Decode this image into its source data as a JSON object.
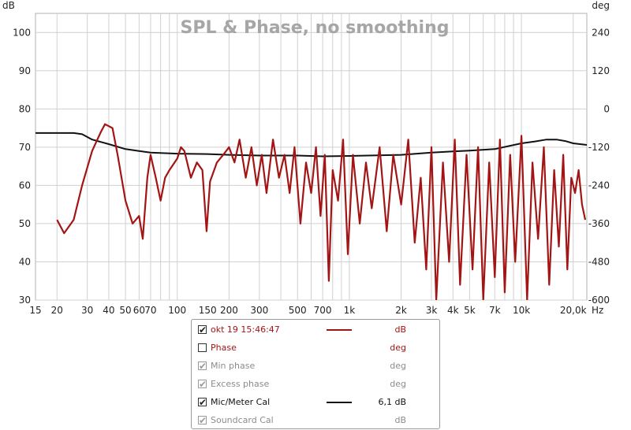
{
  "chart_data": {
    "type": "line",
    "title": "SPL & Phase, no smoothing",
    "xlabel": "Hz",
    "ylabel_left": "dB",
    "ylabel_right": "deg",
    "x_scale": "log",
    "xlim": [
      15,
      24000
    ],
    "ylim_left": [
      30,
      105
    ],
    "ylim_right": [
      -600,
      300
    ],
    "grid": true,
    "x_ticks": [
      {
        "v": 15,
        "label": "15"
      },
      {
        "v": 20,
        "label": "20"
      },
      {
        "v": 30,
        "label": "30"
      },
      {
        "v": 40,
        "label": "40"
      },
      {
        "v": 50,
        "label": "50"
      },
      {
        "v": 60,
        "label": "60"
      },
      {
        "v": 70,
        "label": "70"
      },
      {
        "v": 100,
        "label": "100"
      },
      {
        "v": 150,
        "label": "150"
      },
      {
        "v": 200,
        "label": "200"
      },
      {
        "v": 300,
        "label": "300"
      },
      {
        "v": 500,
        "label": "500"
      },
      {
        "v": 700,
        "label": "700"
      },
      {
        "v": 1000,
        "label": "1k"
      },
      {
        "v": 2000,
        "label": "2k"
      },
      {
        "v": 3000,
        "label": "3k"
      },
      {
        "v": 4000,
        "label": "4k"
      },
      {
        "v": 5000,
        "label": "5k"
      },
      {
        "v": 7000,
        "label": "7k"
      },
      {
        "v": 10000,
        "label": "10k"
      },
      {
        "v": 20000,
        "label": "20,0k"
      }
    ],
    "y_ticks_left": [
      30,
      40,
      50,
      60,
      70,
      80,
      90,
      100
    ],
    "y_ticks_right": [
      -600,
      -480,
      -360,
      -240,
      -120,
      0,
      120,
      240
    ],
    "series": [
      {
        "name": "okt 19 15:46:47",
        "unit": "dB",
        "color": "#a31515",
        "x": [
          20,
          22,
          25,
          28,
          32,
          36,
          38,
          42,
          45,
          50,
          55,
          60,
          63,
          67,
          70,
          75,
          80,
          85,
          90,
          100,
          105,
          110,
          120,
          130,
          140,
          148,
          155,
          170,
          185,
          200,
          215,
          230,
          250,
          270,
          290,
          310,
          330,
          360,
          390,
          420,
          450,
          480,
          520,
          560,
          600,
          640,
          680,
          720,
          760,
          800,
          860,
          920,
          980,
          1050,
          1150,
          1250,
          1350,
          1500,
          1650,
          1800,
          2000,
          2200,
          2400,
          2600,
          2800,
          3000,
          3200,
          3500,
          3800,
          4100,
          4400,
          4800,
          5200,
          5600,
          6000,
          6500,
          7000,
          7500,
          8000,
          8600,
          9200,
          10000,
          10800,
          11600,
          12500,
          13500,
          14500,
          15500,
          16500,
          17500,
          18500,
          19500,
          20500,
          21500,
          22500,
          23500
        ],
        "values": [
          51,
          47.5,
          51,
          60,
          69,
          74,
          76,
          75,
          68,
          56,
          50,
          52,
          46,
          62,
          68,
          62,
          56,
          62,
          64,
          67,
          70,
          69,
          62,
          66,
          64,
          48,
          61,
          66,
          68,
          70,
          66,
          72,
          62,
          70,
          60,
          68,
          58,
          72,
          62,
          68,
          58,
          70,
          50,
          66,
          58,
          70,
          52,
          68,
          35,
          64,
          56,
          72,
          42,
          68,
          50,
          66,
          54,
          70,
          48,
          68,
          55,
          72,
          45,
          62,
          38,
          70,
          30,
          66,
          40,
          72,
          34,
          68,
          38,
          70,
          30,
          66,
          36,
          72,
          32,
          68,
          40,
          73,
          30,
          66,
          46,
          70,
          34,
          64,
          44,
          68,
          38,
          62,
          58,
          64,
          55,
          51
        ]
      },
      {
        "name": "Mic/Meter Cal",
        "unit": "dB",
        "color": "#111111",
        "x": [
          15,
          20,
          25,
          28,
          32,
          40,
          50,
          60,
          70,
          100,
          150,
          200,
          300,
          500,
          700,
          1000,
          2000,
          3000,
          4000,
          5000,
          7000,
          10000,
          12000,
          14000,
          16000,
          18000,
          20000,
          24000
        ],
        "values": [
          73.7,
          73.7,
          73.7,
          73.4,
          72,
          70.8,
          69.5,
          69.0,
          68.6,
          68.3,
          68.2,
          68.0,
          67.8,
          67.8,
          67.6,
          67.7,
          68.0,
          68.6,
          68.9,
          69.1,
          69.5,
          71.0,
          71.5,
          72.0,
          72.0,
          71.6,
          71.0,
          70.6
        ]
      }
    ]
  },
  "legend": {
    "items": [
      {
        "label": "okt 19 15:46:47",
        "unit": "dB",
        "checked": true,
        "color": "#a31515"
      },
      {
        "label": "Phase",
        "unit": "deg",
        "checked": false,
        "color": "#a31515"
      },
      {
        "label": "Min phase",
        "unit": "deg",
        "checked": true,
        "color": "#8c8c8c"
      },
      {
        "label": "Excess phase",
        "unit": "deg",
        "checked": true,
        "color": "#8c8c8c"
      },
      {
        "label": "Mic/Meter Cal",
        "unit": "6,1 dB",
        "checked": true,
        "color": "#111111"
      },
      {
        "label": "Soundcard Cal",
        "unit": "dB",
        "checked": true,
        "color": "#8c8c8c"
      }
    ]
  }
}
